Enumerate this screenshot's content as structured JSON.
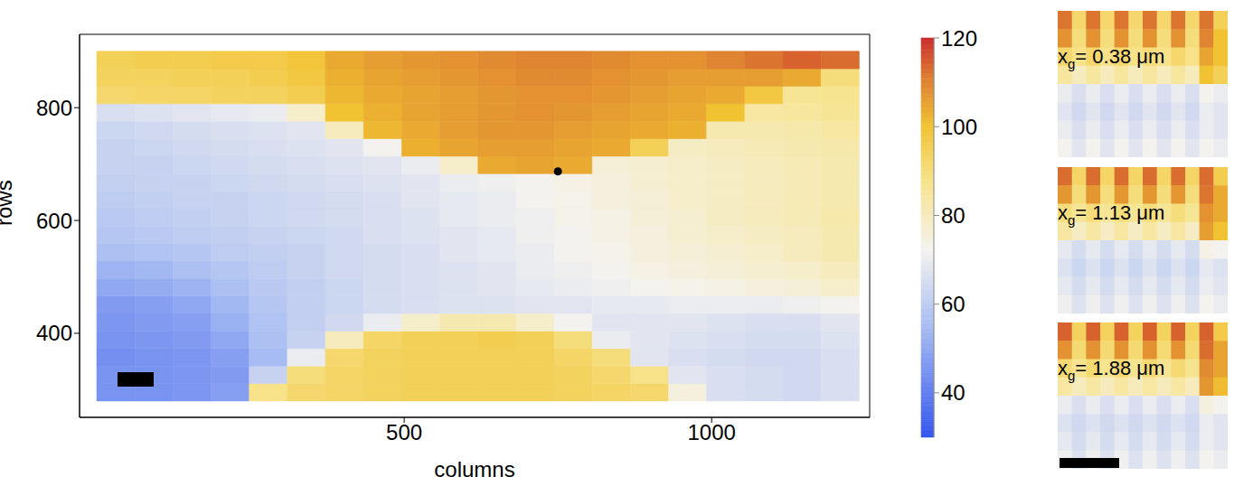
{
  "chart_data": {
    "type": "heatmap",
    "xlabel": "columns",
    "ylabel": "rows",
    "xlim": [
      -28,
      1257
    ],
    "ylim": [
      251,
      930
    ],
    "xticks": [
      500,
      1000
    ],
    "yticks": [
      400,
      600,
      800
    ],
    "x_bins": [
      0,
      62,
      124,
      186,
      248,
      310,
      372,
      434,
      496,
      558,
      620,
      682,
      744,
      806,
      868,
      930,
      992,
      1054,
      1116,
      1178,
      1240
    ],
    "y_bins": [
      280,
      311,
      342,
      373,
      404,
      435,
      466,
      497,
      528,
      559,
      590,
      621,
      652,
      683,
      714,
      745,
      776,
      807,
      838,
      869,
      900
    ],
    "values": [
      [
        45,
        45,
        46,
        48,
        88,
        92,
        93,
        94,
        95,
        95,
        95,
        95,
        94,
        93,
        92,
        75,
        66,
        65,
        64,
        66
      ],
      [
        45,
        45,
        46,
        47,
        62,
        90,
        93,
        94,
        95,
        95,
        95,
        95,
        94,
        92,
        88,
        68,
        66,
        65,
        64,
        66
      ],
      [
        44,
        45,
        46,
        48,
        55,
        70,
        92,
        94,
        95,
        95,
        95,
        95,
        93,
        90,
        68,
        66,
        65,
        64,
        64,
        66
      ],
      [
        45,
        46,
        47,
        50,
        56,
        62,
        80,
        93,
        95,
        95,
        96,
        95,
        90,
        70,
        68,
        67,
        66,
        65,
        65,
        67
      ],
      [
        46,
        47,
        48,
        52,
        57,
        61,
        64,
        70,
        78,
        82,
        82,
        78,
        72,
        68,
        68,
        68,
        67,
        66,
        66,
        68
      ],
      [
        47,
        48,
        50,
        54,
        58,
        61,
        63,
        65,
        66,
        67,
        67,
        68,
        68,
        69,
        69,
        70,
        70,
        70,
        71,
        72
      ],
      [
        50,
        51,
        53,
        56,
        59,
        61,
        63,
        65,
        66,
        67,
        68,
        69,
        70,
        71,
        72,
        73,
        74,
        75,
        76,
        78
      ],
      [
        53,
        54,
        56,
        58,
        60,
        62,
        64,
        65,
        66,
        67,
        68,
        70,
        71,
        72,
        74,
        75,
        76,
        77,
        78,
        80
      ],
      [
        56,
        57,
        58,
        60,
        61,
        62,
        64,
        65,
        66,
        68,
        69,
        70,
        72,
        73,
        75,
        76,
        77,
        78,
        80,
        82
      ],
      [
        58,
        59,
        60,
        61,
        62,
        63,
        64,
        66,
        67,
        68,
        69,
        71,
        72,
        74,
        75,
        77,
        78,
        79,
        80,
        82
      ],
      [
        59,
        60,
        61,
        62,
        63,
        64,
        65,
        66,
        67,
        69,
        70,
        71,
        73,
        74,
        76,
        77,
        79,
        80,
        81,
        83
      ],
      [
        60,
        61,
        62,
        62,
        63,
        64,
        65,
        66,
        68,
        69,
        70,
        72,
        73,
        75,
        76,
        78,
        79,
        80,
        81,
        82
      ],
      [
        61,
        62,
        62,
        63,
        64,
        65,
        66,
        67,
        68,
        70,
        71,
        72,
        74,
        75,
        77,
        78,
        79,
        80,
        81,
        82
      ],
      [
        62,
        62,
        63,
        64,
        65,
        66,
        67,
        68,
        70,
        78,
        104,
        105,
        104,
        76,
        77,
        78,
        79,
        80,
        81,
        82
      ],
      [
        62,
        63,
        64,
        65,
        66,
        67,
        68,
        72,
        103,
        105,
        106,
        106,
        105,
        104,
        95,
        79,
        80,
        81,
        82,
        83
      ],
      [
        63,
        64,
        65,
        66,
        67,
        68,
        80,
        102,
        104,
        106,
        107,
        107,
        106,
        105,
        104,
        103,
        82,
        82,
        83,
        84
      ],
      [
        66,
        67,
        68,
        69,
        70,
        78,
        100,
        103,
        105,
        106,
        107,
        108,
        107,
        106,
        105,
        104,
        100,
        84,
        85,
        86
      ],
      [
        92,
        93,
        93,
        94,
        94,
        96,
        102,
        104,
        105,
        106,
        107,
        108,
        108,
        107,
        106,
        105,
        104,
        98,
        86,
        87
      ],
      [
        94,
        94,
        95,
        95,
        96,
        98,
        103,
        105,
        106,
        107,
        108,
        109,
        109,
        108,
        107,
        106,
        106,
        106,
        104,
        90
      ],
      [
        95,
        96,
        96,
        97,
        97,
        99,
        104,
        106,
        107,
        108,
        109,
        110,
        110,
        109,
        108,
        108,
        110,
        112,
        114,
        113
      ]
    ],
    "marked_point": [
      750,
      687
    ],
    "colorbar": {
      "lim": [
        30,
        120
      ],
      "ticks": [
        40,
        60,
        80,
        100,
        120
      ]
    }
  },
  "insets": [
    {
      "symbol": "x",
      "subscript": "g",
      "text": "= 0.38 μm",
      "values": [
        [
          112,
          92,
          112,
          92,
          112,
          92,
          112,
          92,
          112,
          92,
          112,
          95
        ],
        [
          108,
          90,
          108,
          90,
          108,
          90,
          108,
          90,
          108,
          90,
          110,
          100
        ],
        [
          92,
          88,
          92,
          88,
          92,
          88,
          90,
          88,
          92,
          88,
          105,
          100
        ],
        [
          85,
          80,
          85,
          80,
          85,
          80,
          85,
          80,
          85,
          80,
          100,
          95
        ],
        [
          70,
          66,
          70,
          66,
          70,
          66,
          70,
          66,
          70,
          66,
          72,
          70
        ],
        [
          68,
          64,
          68,
          64,
          68,
          64,
          68,
          64,
          68,
          64,
          70,
          68
        ],
        [
          70,
          66,
          70,
          66,
          70,
          66,
          70,
          66,
          70,
          66,
          70,
          68
        ],
        [
          72,
          68,
          72,
          68,
          72,
          68,
          72,
          68,
          72,
          68,
          72,
          70
        ]
      ]
    },
    {
      "symbol": "x",
      "subscript": "g",
      "text": "= 1.13 μm",
      "values": [
        [
          113,
          93,
          113,
          93,
          113,
          93,
          113,
          93,
          113,
          93,
          113,
          96
        ],
        [
          107,
          90,
          107,
          90,
          107,
          90,
          107,
          90,
          107,
          90,
          112,
          104
        ],
        [
          90,
          86,
          90,
          86,
          90,
          86,
          90,
          86,
          90,
          86,
          108,
          104
        ],
        [
          84,
          79,
          84,
          79,
          84,
          79,
          84,
          79,
          84,
          79,
          106,
          100
        ],
        [
          69,
          65,
          69,
          65,
          69,
          65,
          69,
          65,
          69,
          65,
          74,
          72
        ],
        [
          67,
          63,
          67,
          63,
          67,
          63,
          67,
          63,
          67,
          63,
          69,
          67
        ],
        [
          69,
          65,
          69,
          65,
          69,
          65,
          69,
          65,
          69,
          65,
          70,
          68
        ],
        [
          71,
          67,
          71,
          67,
          71,
          67,
          71,
          67,
          71,
          67,
          72,
          70
        ]
      ]
    },
    {
      "symbol": "x",
      "subscript": "g",
      "text": "= 1.88 μm",
      "values": [
        [
          114,
          94,
          114,
          94,
          114,
          94,
          114,
          94,
          114,
          94,
          114,
          97
        ],
        [
          108,
          91,
          108,
          91,
          108,
          91,
          108,
          91,
          108,
          91,
          113,
          105
        ],
        [
          91,
          87,
          91,
          87,
          91,
          87,
          91,
          87,
          91,
          87,
          109,
          105
        ],
        [
          84,
          80,
          84,
          80,
          84,
          80,
          84,
          80,
          84,
          80,
          107,
          101
        ],
        [
          70,
          66,
          70,
          66,
          70,
          66,
          70,
          66,
          70,
          66,
          75,
          72
        ],
        [
          67,
          64,
          67,
          64,
          67,
          64,
          67,
          64,
          67,
          64,
          70,
          68
        ],
        [
          69,
          65,
          69,
          65,
          69,
          65,
          69,
          65,
          69,
          65,
          70,
          68
        ],
        [
          71,
          67,
          71,
          67,
          71,
          67,
          71,
          67,
          71,
          67,
          72,
          70
        ]
      ]
    }
  ]
}
